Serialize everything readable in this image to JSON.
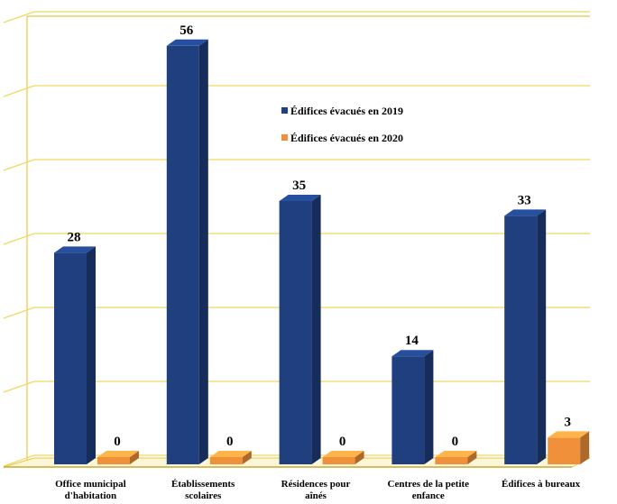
{
  "chart_data": {
    "type": "bar",
    "categories": [
      [
        "Office municipal",
        "d'habitation"
      ],
      [
        "Établissements",
        "scolaires"
      ],
      [
        "Résidences pour",
        "aînés"
      ],
      [
        "Centres de la petite",
        "enfance"
      ],
      [
        "Édifices à bureaux"
      ]
    ],
    "series": [
      {
        "name": "Édifices évacués en 2019",
        "values": [
          28,
          56,
          35,
          14,
          33
        ],
        "color": "#1f3f7f"
      },
      {
        "name": "Édifices évacués en 2020",
        "values": [
          0,
          0,
          0,
          0,
          3
        ],
        "color": "#f0903a"
      }
    ],
    "ylim": [
      0,
      60
    ],
    "grid": true,
    "legend": "top-center"
  }
}
